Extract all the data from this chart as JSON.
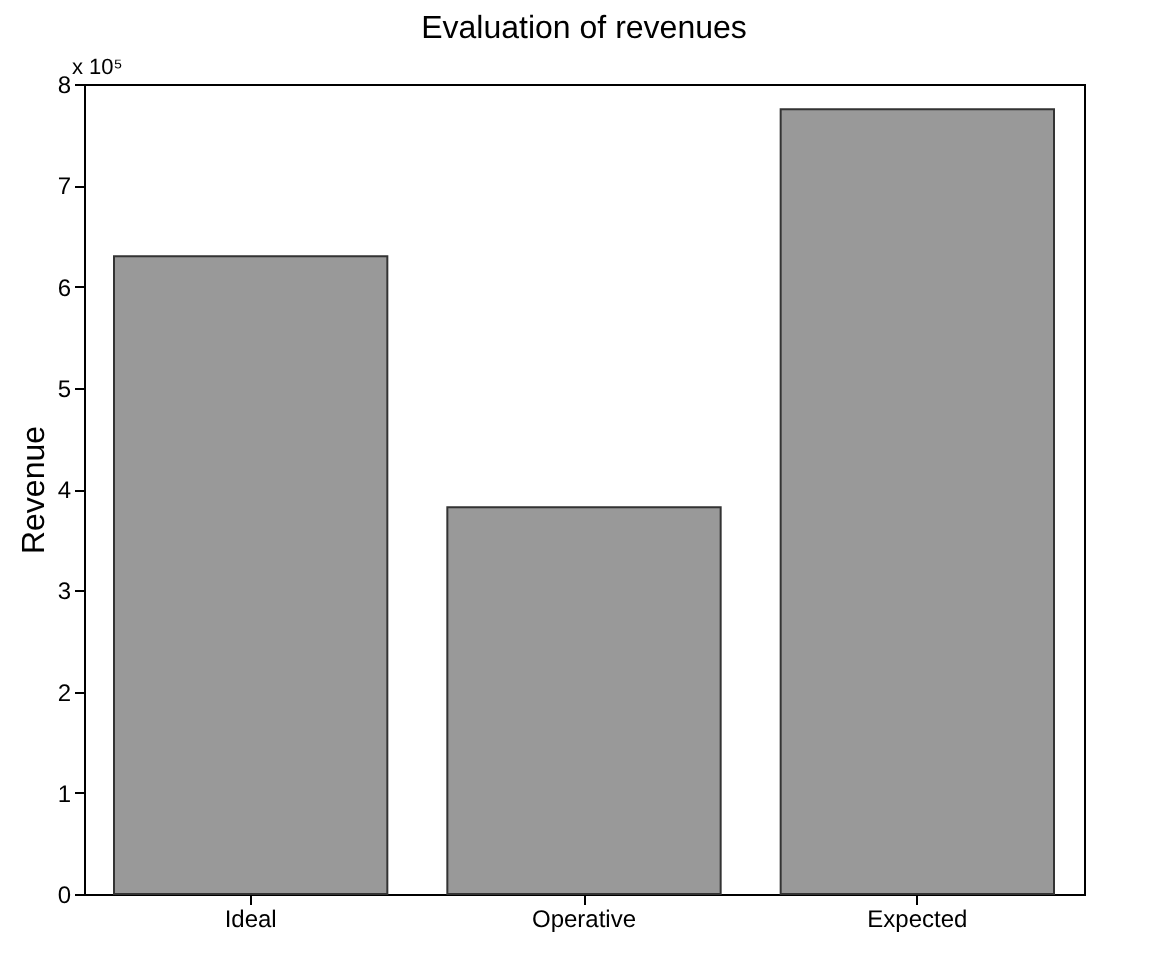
{
  "chart_data": {
    "type": "bar",
    "title": "Evaluation of revenues",
    "ylabel": "Revenue",
    "categories": [
      "Ideal",
      "Operative",
      "Expected"
    ],
    "values": [
      6.3,
      3.82,
      7.75
    ],
    "color": "#999999",
    "ylim": [
      0,
      8
    ],
    "yticks": [
      0,
      1,
      2,
      3,
      4,
      5,
      6,
      7,
      8
    ],
    "annotations": [
      "x 10⁵"
    ]
  }
}
